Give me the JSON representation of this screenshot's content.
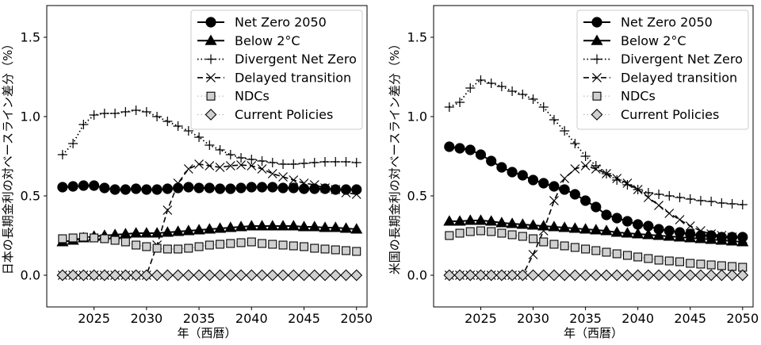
{
  "chart_data": [
    {
      "type": "line",
      "panel": "left",
      "xlabel": "年（西暦）",
      "ylabel": "日本の長期金利の対ベースライン差分（%）",
      "xlim": [
        2020.5,
        2051.0
      ],
      "ylim": [
        -0.2,
        1.7
      ],
      "xticks": [
        2025,
        2030,
        2035,
        2040,
        2045,
        2050
      ],
      "yticks": [
        0.0,
        0.5,
        1.0,
        1.5
      ],
      "tick_labels_x": [
        "2025",
        "2030",
        "2035",
        "2040",
        "2045",
        "2050"
      ],
      "tick_labels_y": [
        "0.0",
        "0.5",
        "1.0",
        "1.5"
      ],
      "legend_position": "top-right",
      "grid": false,
      "x": [
        2022,
        2023,
        2024,
        2025,
        2026,
        2027,
        2028,
        2029,
        2030,
        2031,
        2032,
        2033,
        2034,
        2035,
        2036,
        2037,
        2038,
        2039,
        2040,
        2041,
        2042,
        2043,
        2044,
        2045,
        2046,
        2047,
        2048,
        2049,
        2050
      ],
      "series": [
        {
          "name": "Net Zero 2050",
          "marker": "circle",
          "line": "solid",
          "values": [
            0.555,
            0.56,
            0.565,
            0.565,
            0.55,
            0.54,
            0.54,
            0.545,
            0.54,
            0.54,
            0.545,
            0.55,
            0.555,
            0.55,
            0.55,
            0.545,
            0.545,
            0.55,
            0.555,
            0.555,
            0.555,
            0.55,
            0.55,
            0.545,
            0.545,
            0.545,
            0.54,
            0.54,
            0.54
          ]
        },
        {
          "name": "Below 2°C",
          "marker": "triangle",
          "line": "solid",
          "values": [
            0.21,
            0.22,
            0.235,
            0.245,
            0.25,
            0.255,
            0.26,
            0.265,
            0.265,
            0.265,
            0.27,
            0.275,
            0.28,
            0.285,
            0.29,
            0.295,
            0.3,
            0.305,
            0.31,
            0.31,
            0.31,
            0.31,
            0.31,
            0.305,
            0.305,
            0.3,
            0.3,
            0.295,
            0.29
          ]
        },
        {
          "name": "Divergent Net Zero",
          "marker": "plus",
          "line": "dotted",
          "values": [
            0.76,
            0.83,
            0.95,
            1.01,
            1.02,
            1.02,
            1.03,
            1.04,
            1.03,
            1.0,
            0.97,
            0.94,
            0.91,
            0.87,
            0.82,
            0.79,
            0.76,
            0.74,
            0.73,
            0.72,
            0.71,
            0.7,
            0.7,
            0.705,
            0.71,
            0.715,
            0.715,
            0.715,
            0.71
          ]
        },
        {
          "name": "Delayed transition",
          "marker": "x",
          "line": "dashed",
          "values": [
            0,
            0,
            0,
            0,
            0,
            0,
            0,
            0,
            0,
            0.19,
            0.41,
            0.58,
            0.67,
            0.7,
            0.69,
            0.68,
            0.69,
            0.695,
            0.69,
            0.67,
            0.64,
            0.62,
            0.6,
            0.58,
            0.57,
            0.55,
            0.54,
            0.52,
            0.51
          ]
        },
        {
          "name": "NDCs",
          "marker": "square",
          "line": "dotted-light",
          "values": [
            0.23,
            0.235,
            0.24,
            0.235,
            0.23,
            0.22,
            0.21,
            0.19,
            0.18,
            0.17,
            0.165,
            0.165,
            0.17,
            0.18,
            0.19,
            0.195,
            0.2,
            0.205,
            0.21,
            0.2,
            0.195,
            0.19,
            0.185,
            0.18,
            0.17,
            0.165,
            0.16,
            0.155,
            0.15
          ]
        },
        {
          "name": "Current Policies",
          "marker": "diamond",
          "line": "dotted-light",
          "values": [
            0,
            0,
            0,
            0,
            0,
            0,
            0,
            0,
            0,
            0,
            0,
            0,
            0,
            0,
            0,
            0,
            0,
            0,
            0,
            0,
            0,
            0,
            0,
            0,
            0,
            0,
            0,
            0,
            0
          ]
        }
      ]
    },
    {
      "type": "line",
      "panel": "right",
      "xlabel": "年（西暦）",
      "ylabel": "米国の長期金利の対ベースライン差分（%）",
      "xlim": [
        2020.5,
        2051.0
      ],
      "ylim": [
        -0.2,
        1.7
      ],
      "xticks": [
        2025,
        2030,
        2035,
        2040,
        2045,
        2050
      ],
      "yticks": [
        0.0,
        0.5,
        1.0,
        1.5
      ],
      "tick_labels_x": [
        "2025",
        "2030",
        "2035",
        "2040",
        "2045",
        "2050"
      ],
      "tick_labels_y": [
        "0.0",
        "0.5",
        "1.0",
        "1.5"
      ],
      "legend_position": "top-right",
      "grid": false,
      "x": [
        2022,
        2023,
        2024,
        2025,
        2026,
        2027,
        2028,
        2029,
        2030,
        2031,
        2032,
        2033,
        2034,
        2035,
        2036,
        2037,
        2038,
        2039,
        2040,
        2041,
        2042,
        2043,
        2044,
        2045,
        2046,
        2047,
        2048,
        2049,
        2050
      ],
      "series": [
        {
          "name": "Net Zero 2050",
          "marker": "circle",
          "line": "solid",
          "values": [
            0.81,
            0.8,
            0.79,
            0.76,
            0.72,
            0.68,
            0.65,
            0.63,
            0.6,
            0.58,
            0.56,
            0.54,
            0.51,
            0.47,
            0.43,
            0.38,
            0.36,
            0.34,
            0.32,
            0.31,
            0.29,
            0.28,
            0.27,
            0.26,
            0.25,
            0.25,
            0.24,
            0.24,
            0.24
          ]
        },
        {
          "name": "Below 2°C",
          "marker": "triangle",
          "line": "solid",
          "values": [
            0.34,
            0.34,
            0.345,
            0.345,
            0.34,
            0.33,
            0.325,
            0.32,
            0.315,
            0.31,
            0.305,
            0.3,
            0.295,
            0.29,
            0.285,
            0.28,
            0.27,
            0.265,
            0.26,
            0.255,
            0.25,
            0.245,
            0.24,
            0.235,
            0.23,
            0.225,
            0.22,
            0.215,
            0.21
          ]
        },
        {
          "name": "Divergent Net Zero",
          "marker": "plus",
          "line": "dotted",
          "values": [
            1.06,
            1.09,
            1.18,
            1.23,
            1.21,
            1.19,
            1.16,
            1.14,
            1.11,
            1.06,
            0.98,
            0.91,
            0.83,
            0.75,
            0.69,
            0.64,
            0.6,
            0.57,
            0.54,
            0.52,
            0.51,
            0.5,
            0.49,
            0.48,
            0.47,
            0.465,
            0.455,
            0.45,
            0.445
          ]
        },
        {
          "name": "Delayed transition",
          "marker": "x",
          "line": "dashed",
          "values": [
            0,
            0,
            0,
            0,
            0,
            0,
            0,
            0,
            0.13,
            0.28,
            0.47,
            0.61,
            0.67,
            0.69,
            0.67,
            0.64,
            0.61,
            0.58,
            0.54,
            0.49,
            0.44,
            0.39,
            0.35,
            0.31,
            0.28,
            0.26,
            0.25,
            0.24,
            0.23
          ]
        },
        {
          "name": "NDCs",
          "marker": "square",
          "line": "dotted-light",
          "values": [
            0.25,
            0.265,
            0.275,
            0.28,
            0.275,
            0.265,
            0.255,
            0.245,
            0.23,
            0.21,
            0.195,
            0.185,
            0.175,
            0.165,
            0.155,
            0.145,
            0.135,
            0.125,
            0.115,
            0.105,
            0.095,
            0.09,
            0.085,
            0.075,
            0.07,
            0.065,
            0.06,
            0.055,
            0.05
          ]
        },
        {
          "name": "Current Policies",
          "marker": "diamond",
          "line": "dotted-light",
          "values": [
            0,
            0,
            0,
            0,
            0,
            0,
            0,
            0,
            0,
            0,
            0,
            0,
            0,
            0,
            0,
            0,
            0,
            0,
            0,
            0,
            0,
            0,
            0,
            0,
            0,
            0,
            0,
            0,
            0
          ]
        }
      ]
    }
  ]
}
